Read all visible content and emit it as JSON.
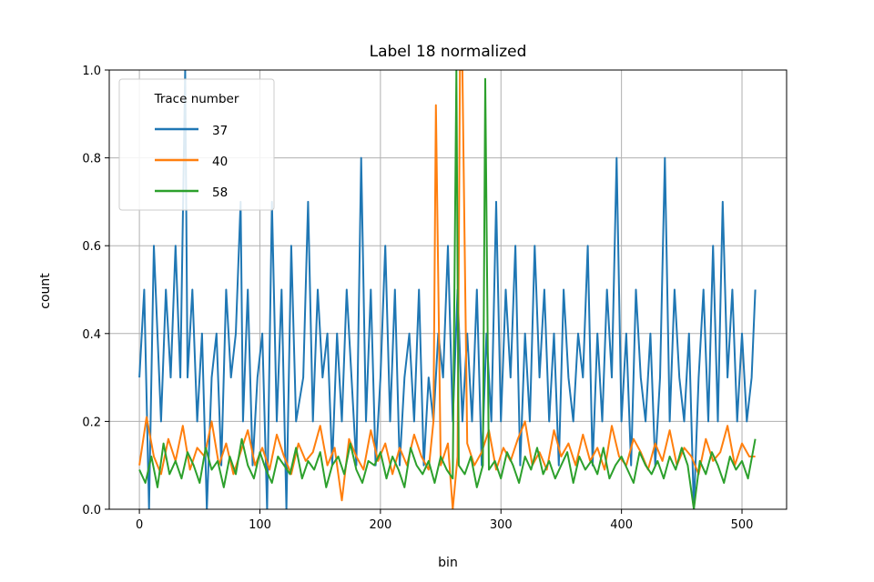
{
  "chart_data": {
    "type": "line",
    "title": "Label 18 normalized",
    "xlabel": "bin",
    "ylabel": "count",
    "xlim": [
      -25,
      537
    ],
    "ylim": [
      0,
      1.0
    ],
    "x_ticks": [
      0,
      100,
      200,
      300,
      400,
      500
    ],
    "y_ticks": [
      0.0,
      0.2,
      0.4,
      0.6,
      0.8,
      1.0
    ],
    "grid": true,
    "legend": {
      "title": "Trace number",
      "placement": "top-left"
    },
    "series": [
      {
        "name": "37",
        "color": "#1f77b4",
        "x": [
          0,
          4,
          8,
          10,
          12,
          18,
          22,
          26,
          30,
          34,
          38,
          40,
          44,
          48,
          52,
          56,
          60,
          64,
          68,
          72,
          76,
          80,
          84,
          86,
          90,
          94,
          98,
          102,
          106,
          110,
          114,
          118,
          122,
          126,
          130,
          136,
          140,
          144,
          148,
          152,
          156,
          160,
          164,
          168,
          172,
          176,
          180,
          184,
          188,
          192,
          196,
          200,
          204,
          208,
          212,
          216,
          220,
          224,
          228,
          232,
          236,
          240,
          244,
          248,
          252,
          256,
          260,
          264,
          268,
          272,
          276,
          280,
          284,
          288,
          292,
          296,
          300,
          304,
          308,
          312,
          316,
          320,
          324,
          328,
          332,
          336,
          340,
          344,
          348,
          352,
          356,
          360,
          364,
          368,
          372,
          376,
          380,
          384,
          388,
          392,
          396,
          400,
          404,
          408,
          412,
          416,
          420,
          424,
          428,
          432,
          436,
          440,
          444,
          448,
          452,
          456,
          460,
          464,
          468,
          472,
          476,
          480,
          484,
          488,
          492,
          496,
          500,
          504,
          508,
          511
        ],
        "y": [
          0.3,
          0.5,
          0.0,
          0.3,
          0.6,
          0.2,
          0.5,
          0.3,
          0.6,
          0.3,
          1.0,
          0.3,
          0.5,
          0.2,
          0.4,
          0.0,
          0.3,
          0.4,
          0.1,
          0.5,
          0.3,
          0.4,
          0.7,
          0.2,
          0.5,
          0.1,
          0.3,
          0.4,
          0.0,
          0.7,
          0.2,
          0.5,
          0.0,
          0.6,
          0.2,
          0.3,
          0.7,
          0.2,
          0.5,
          0.3,
          0.4,
          0.1,
          0.4,
          0.2,
          0.5,
          0.3,
          0.1,
          0.8,
          0.2,
          0.5,
          0.1,
          0.3,
          0.6,
          0.2,
          0.5,
          0.1,
          0.3,
          0.4,
          0.2,
          0.5,
          0.1,
          0.3,
          0.2,
          0.4,
          0.3,
          0.6,
          0.2,
          0.5,
          0.2,
          0.4,
          0.2,
          0.5,
          0.1,
          0.4,
          0.2,
          0.7,
          0.2,
          0.5,
          0.3,
          0.6,
          0.1,
          0.4,
          0.2,
          0.6,
          0.3,
          0.5,
          0.2,
          0.4,
          0.1,
          0.5,
          0.3,
          0.2,
          0.4,
          0.3,
          0.6,
          0.1,
          0.4,
          0.2,
          0.5,
          0.3,
          0.8,
          0.2,
          0.4,
          0.1,
          0.5,
          0.3,
          0.2,
          0.4,
          0.1,
          0.3,
          0.8,
          0.2,
          0.5,
          0.3,
          0.2,
          0.4,
          0.0,
          0.3,
          0.5,
          0.2,
          0.6,
          0.2,
          0.7,
          0.3,
          0.5,
          0.2,
          0.4,
          0.2,
          0.3,
          0.5
        ]
      },
      {
        "name": "40",
        "color": "#ff7f0e",
        "x": [
          0,
          6,
          12,
          18,
          24,
          30,
          36,
          42,
          48,
          54,
          60,
          66,
          72,
          78,
          84,
          90,
          96,
          102,
          108,
          114,
          120,
          126,
          132,
          138,
          144,
          150,
          156,
          162,
          168,
          174,
          180,
          186,
          192,
          198,
          204,
          210,
          216,
          222,
          228,
          234,
          240,
          244,
          246,
          250,
          256,
          260,
          264,
          266,
          268,
          272,
          278,
          284,
          290,
          296,
          302,
          308,
          314,
          320,
          326,
          332,
          338,
          344,
          350,
          356,
          362,
          368,
          374,
          380,
          386,
          392,
          398,
          404,
          410,
          416,
          422,
          428,
          434,
          440,
          446,
          452,
          458,
          464,
          470,
          476,
          482,
          488,
          494,
          500,
          506,
          511
        ],
        "y": [
          0.1,
          0.21,
          0.12,
          0.08,
          0.16,
          0.11,
          0.19,
          0.09,
          0.14,
          0.12,
          0.2,
          0.1,
          0.15,
          0.08,
          0.13,
          0.18,
          0.1,
          0.14,
          0.09,
          0.17,
          0.12,
          0.08,
          0.15,
          0.11,
          0.13,
          0.19,
          0.1,
          0.14,
          0.02,
          0.16,
          0.12,
          0.09,
          0.18,
          0.11,
          0.15,
          0.08,
          0.14,
          0.1,
          0.17,
          0.12,
          0.09,
          0.2,
          0.92,
          0.1,
          0.15,
          0.0,
          0.12,
          1.0,
          1.0,
          0.15,
          0.1,
          0.13,
          0.18,
          0.09,
          0.14,
          0.11,
          0.16,
          0.2,
          0.1,
          0.13,
          0.09,
          0.18,
          0.12,
          0.15,
          0.1,
          0.17,
          0.11,
          0.14,
          0.09,
          0.19,
          0.12,
          0.1,
          0.16,
          0.13,
          0.09,
          0.15,
          0.11,
          0.18,
          0.1,
          0.14,
          0.12,
          0.08,
          0.16,
          0.11,
          0.13,
          0.19,
          0.1,
          0.15,
          0.12,
          0.12
        ]
      },
      {
        "name": "58",
        "color": "#2ca02c",
        "x": [
          0,
          5,
          10,
          15,
          20,
          25,
          30,
          35,
          40,
          45,
          50,
          55,
          60,
          65,
          70,
          75,
          80,
          85,
          90,
          95,
          100,
          105,
          110,
          115,
          120,
          125,
          130,
          135,
          140,
          145,
          150,
          155,
          160,
          165,
          170,
          175,
          180,
          185,
          190,
          195,
          200,
          205,
          210,
          215,
          220,
          225,
          230,
          235,
          240,
          245,
          250,
          255,
          260,
          263,
          265,
          270,
          275,
          280,
          285,
          287,
          290,
          295,
          300,
          305,
          310,
          315,
          320,
          325,
          330,
          335,
          340,
          345,
          350,
          355,
          360,
          365,
          370,
          375,
          380,
          385,
          390,
          395,
          400,
          405,
          410,
          415,
          420,
          425,
          430,
          435,
          440,
          445,
          450,
          455,
          460,
          465,
          470,
          475,
          480,
          485,
          490,
          495,
          500,
          505,
          511
        ],
        "y": [
          0.09,
          0.06,
          0.12,
          0.05,
          0.15,
          0.08,
          0.11,
          0.07,
          0.13,
          0.1,
          0.06,
          0.14,
          0.09,
          0.11,
          0.05,
          0.12,
          0.08,
          0.16,
          0.1,
          0.07,
          0.13,
          0.09,
          0.06,
          0.12,
          0.1,
          0.08,
          0.14,
          0.07,
          0.11,
          0.09,
          0.13,
          0.05,
          0.1,
          0.12,
          0.08,
          0.15,
          0.09,
          0.06,
          0.11,
          0.1,
          0.13,
          0.07,
          0.12,
          0.09,
          0.05,
          0.14,
          0.1,
          0.08,
          0.11,
          0.06,
          0.12,
          0.09,
          0.07,
          1.0,
          0.1,
          0.08,
          0.12,
          0.05,
          0.1,
          0.98,
          0.09,
          0.11,
          0.07,
          0.13,
          0.1,
          0.06,
          0.12,
          0.09,
          0.14,
          0.08,
          0.11,
          0.07,
          0.1,
          0.13,
          0.06,
          0.12,
          0.09,
          0.11,
          0.08,
          0.14,
          0.07,
          0.1,
          0.12,
          0.09,
          0.06,
          0.13,
          0.1,
          0.08,
          0.11,
          0.07,
          0.12,
          0.09,
          0.14,
          0.1,
          0.0,
          0.11,
          0.08,
          0.13,
          0.1,
          0.06,
          0.12,
          0.09,
          0.11,
          0.07,
          0.16
        ]
      }
    ]
  }
}
